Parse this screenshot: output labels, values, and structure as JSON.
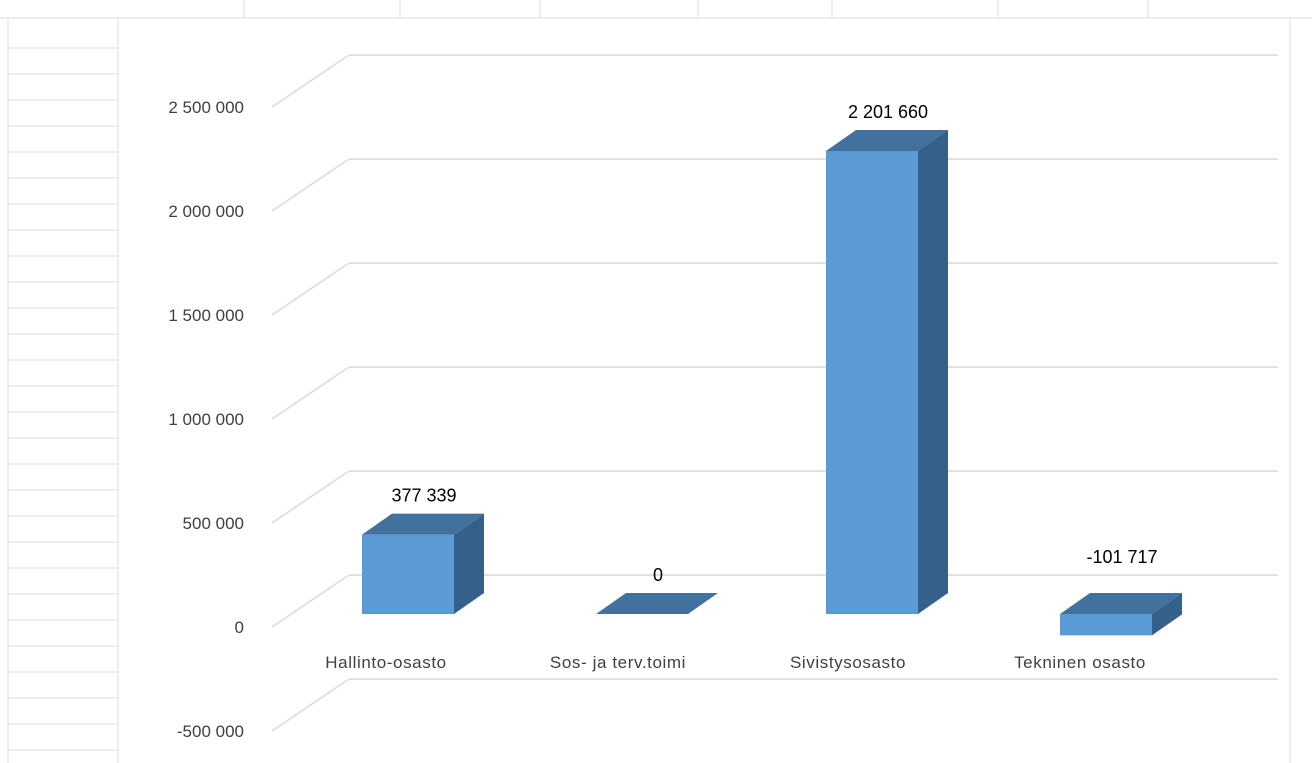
{
  "chart_data": {
    "type": "bar",
    "style": "3d-column",
    "categories": [
      "Hallinto-osasto",
      "Sos- ja terv.toimi",
      "Sivistysosasto",
      "Tekninen osasto"
    ],
    "values": [
      377339,
      0,
      2201660,
      -101717
    ],
    "data_labels": [
      "377 339",
      "0",
      "2 201 660",
      "-101 717"
    ],
    "y_ticks": [
      -500000,
      0,
      500000,
      1000000,
      1500000,
      2000000,
      2500000
    ],
    "y_tick_labels": [
      "-500 000",
      "0",
      "500 000",
      "1 000 000",
      "1 500 000",
      "2 000 000",
      "2 500 000"
    ],
    "ylim": [
      -500000,
      2500000
    ],
    "grid": true,
    "legend": "none",
    "colors": {
      "front": "#5b9bd5",
      "top": "#41719c",
      "side": "#35608a",
      "floor": "#41719c",
      "gridline": "#d9d9d9",
      "sheet_grid": "#dcdcdc"
    }
  }
}
